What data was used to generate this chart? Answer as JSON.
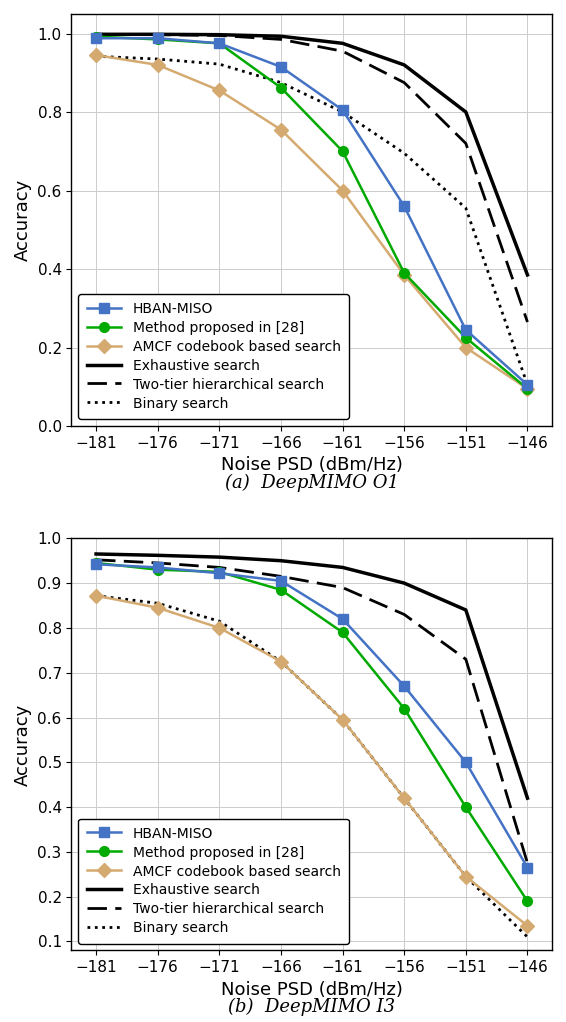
{
  "x": [
    -181,
    -176,
    -171,
    -166,
    -161,
    -156,
    -151,
    -146
  ],
  "subplot_a": {
    "caption": "(a)  DeepMIMO O1",
    "hban_miso": [
      0.988,
      0.988,
      0.975,
      0.915,
      0.805,
      0.56,
      0.245,
      0.105
    ],
    "method28": [
      0.992,
      0.985,
      0.975,
      0.862,
      0.7,
      0.39,
      0.225,
      0.095
    ],
    "amcf": [
      0.945,
      0.92,
      0.855,
      0.755,
      0.6,
      0.385,
      0.2,
      0.095
    ],
    "exhaustive": [
      0.998,
      0.998,
      0.997,
      0.993,
      0.975,
      0.92,
      0.8,
      0.385
    ],
    "two_tier": [
      0.998,
      0.997,
      0.995,
      0.985,
      0.955,
      0.875,
      0.72,
      0.265
    ],
    "binary": [
      0.942,
      0.935,
      0.922,
      0.875,
      0.8,
      0.695,
      0.555,
      0.105
    ],
    "ylim": [
      0.0,
      1.05
    ],
    "yticks": [
      0.0,
      0.2,
      0.4,
      0.6,
      0.8,
      1.0
    ]
  },
  "subplot_b": {
    "caption": "(b)  DeepMIMO I3",
    "hban_miso": [
      0.942,
      0.935,
      0.922,
      0.905,
      0.82,
      0.67,
      0.5,
      0.265
    ],
    "method28": [
      0.945,
      0.93,
      0.925,
      0.885,
      0.79,
      0.62,
      0.4,
      0.19
    ],
    "amcf": [
      0.872,
      0.845,
      0.8,
      0.725,
      0.595,
      0.42,
      0.245,
      0.135
    ],
    "exhaustive": [
      0.965,
      0.962,
      0.958,
      0.95,
      0.935,
      0.9,
      0.84,
      0.42
    ],
    "two_tier": [
      0.952,
      0.945,
      0.935,
      0.915,
      0.89,
      0.83,
      0.73,
      0.275
    ],
    "binary": [
      0.872,
      0.855,
      0.815,
      0.725,
      0.595,
      0.42,
      0.245,
      0.11
    ],
    "ylim": [
      0.08,
      1.0
    ],
    "yticks": [
      0.1,
      0.2,
      0.3,
      0.4,
      0.5,
      0.6,
      0.7,
      0.8,
      0.9,
      1.0
    ]
  },
  "colors": {
    "hban_miso": "#4472C4",
    "method28": "#00AA00",
    "amcf": "#D4AA70",
    "exhaustive": "#000000",
    "two_tier": "#000000",
    "binary": "#000000"
  },
  "xlabel": "Noise PSD (dBm/Hz)",
  "ylabel": "Accuracy",
  "legend_labels": [
    "HBAN-MISO",
    "Method proposed in [28]",
    "AMCF codebook based search",
    "Exhaustive search",
    "Two-tier hierarchical search",
    "Binary search"
  ]
}
